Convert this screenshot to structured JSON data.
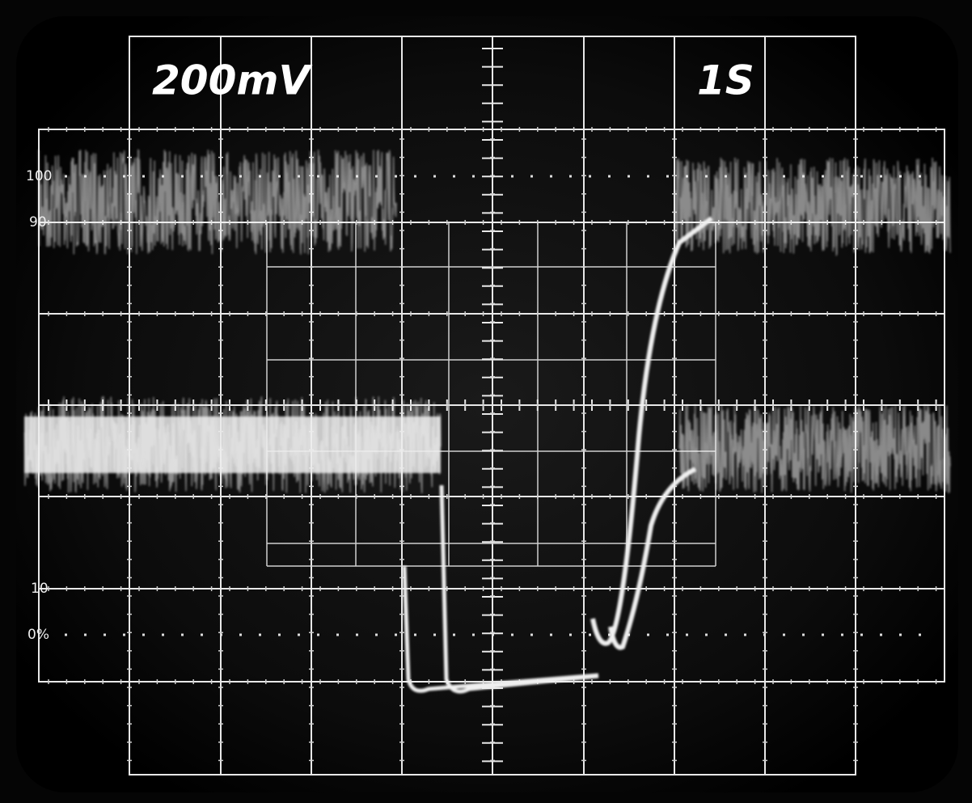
{
  "readout": {
    "volts_per_div": "200mV",
    "time_per_div": "1S"
  },
  "graticule_labels": [
    "100",
    "90",
    "10",
    "0%"
  ]
}
